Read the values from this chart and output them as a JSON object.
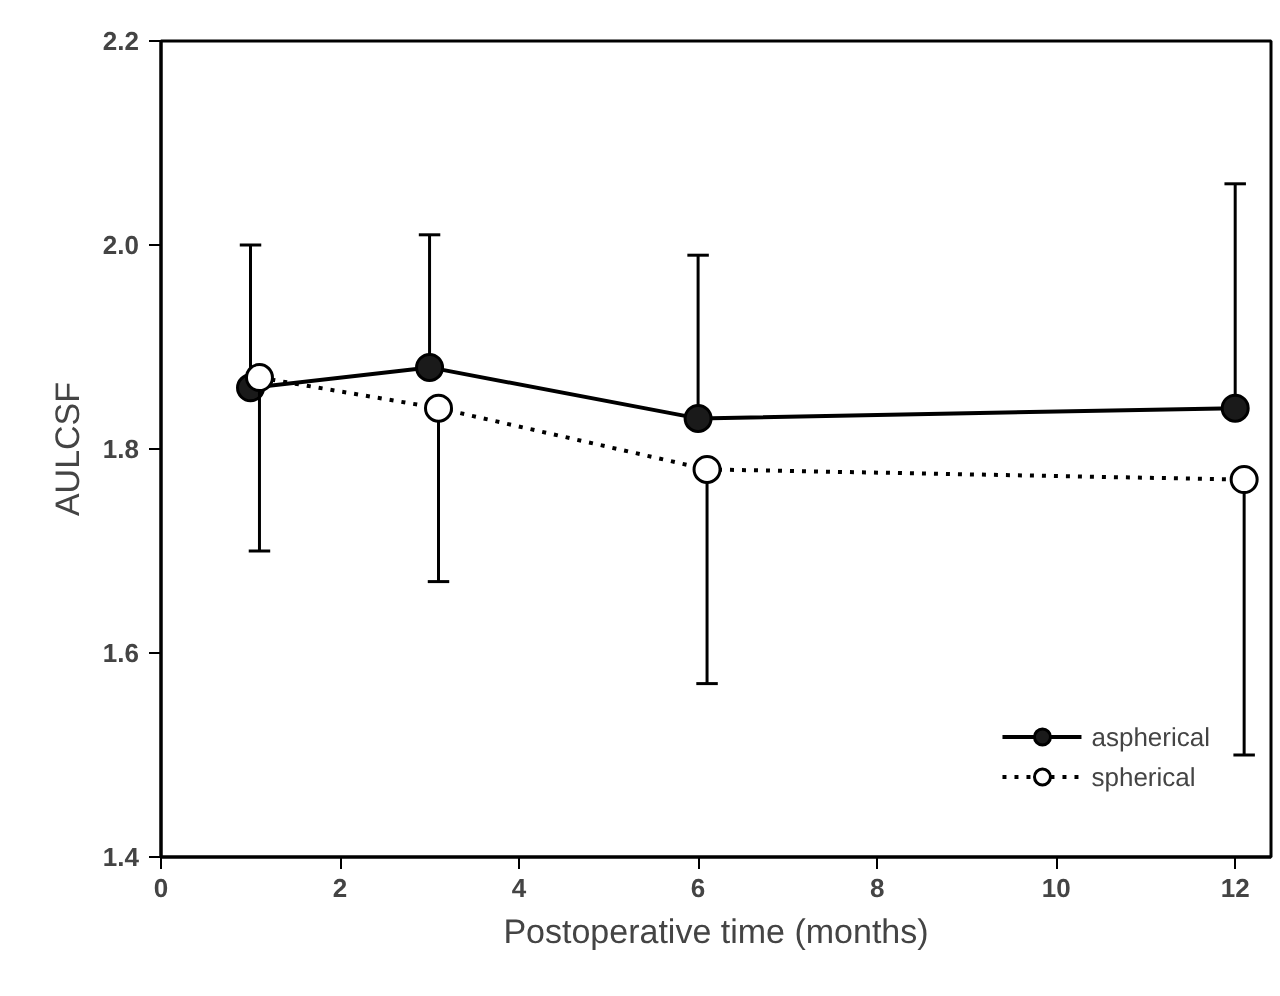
{
  "chart_data": {
    "type": "line",
    "xlabel": "Postoperative time (months)",
    "ylabel": "AULCSF",
    "xlim": [
      0,
      12.4
    ],
    "ylim": [
      1.4,
      2.2
    ],
    "xticks": [
      0,
      2,
      4,
      6,
      8,
      10,
      12
    ],
    "yticks": [
      1.4,
      1.6,
      1.8,
      {
        "value": 2.0,
        "label": "2.0"
      },
      2.2
    ],
    "grid": false,
    "legend": "bottom right",
    "series": [
      {
        "name": "aspherical",
        "color": "#1a1a1a",
        "x": [
          1,
          3,
          6,
          12
        ],
        "values": [
          1.86,
          1.88,
          1.83,
          1.84
        ],
        "errors": [
          [
            1.86,
            2.0
          ],
          [
            1.88,
            2.01
          ],
          [
            1.83,
            1.99
          ],
          [
            1.84,
            2.06
          ]
        ],
        "marker": "circle",
        "line_style": "solid"
      },
      {
        "name": "spherical",
        "color": "#ffffff",
        "x": [
          1.1,
          3.1,
          6.1,
          12.1
        ],
        "values": [
          1.87,
          1.84,
          1.78,
          1.77
        ],
        "errors": [
          [
            1.7,
            1.87
          ],
          [
            1.67,
            1.84
          ],
          [
            1.57,
            1.78
          ],
          [
            1.5,
            1.77
          ]
        ],
        "marker": "circle",
        "line_style": "dotted"
      }
    ]
  }
}
